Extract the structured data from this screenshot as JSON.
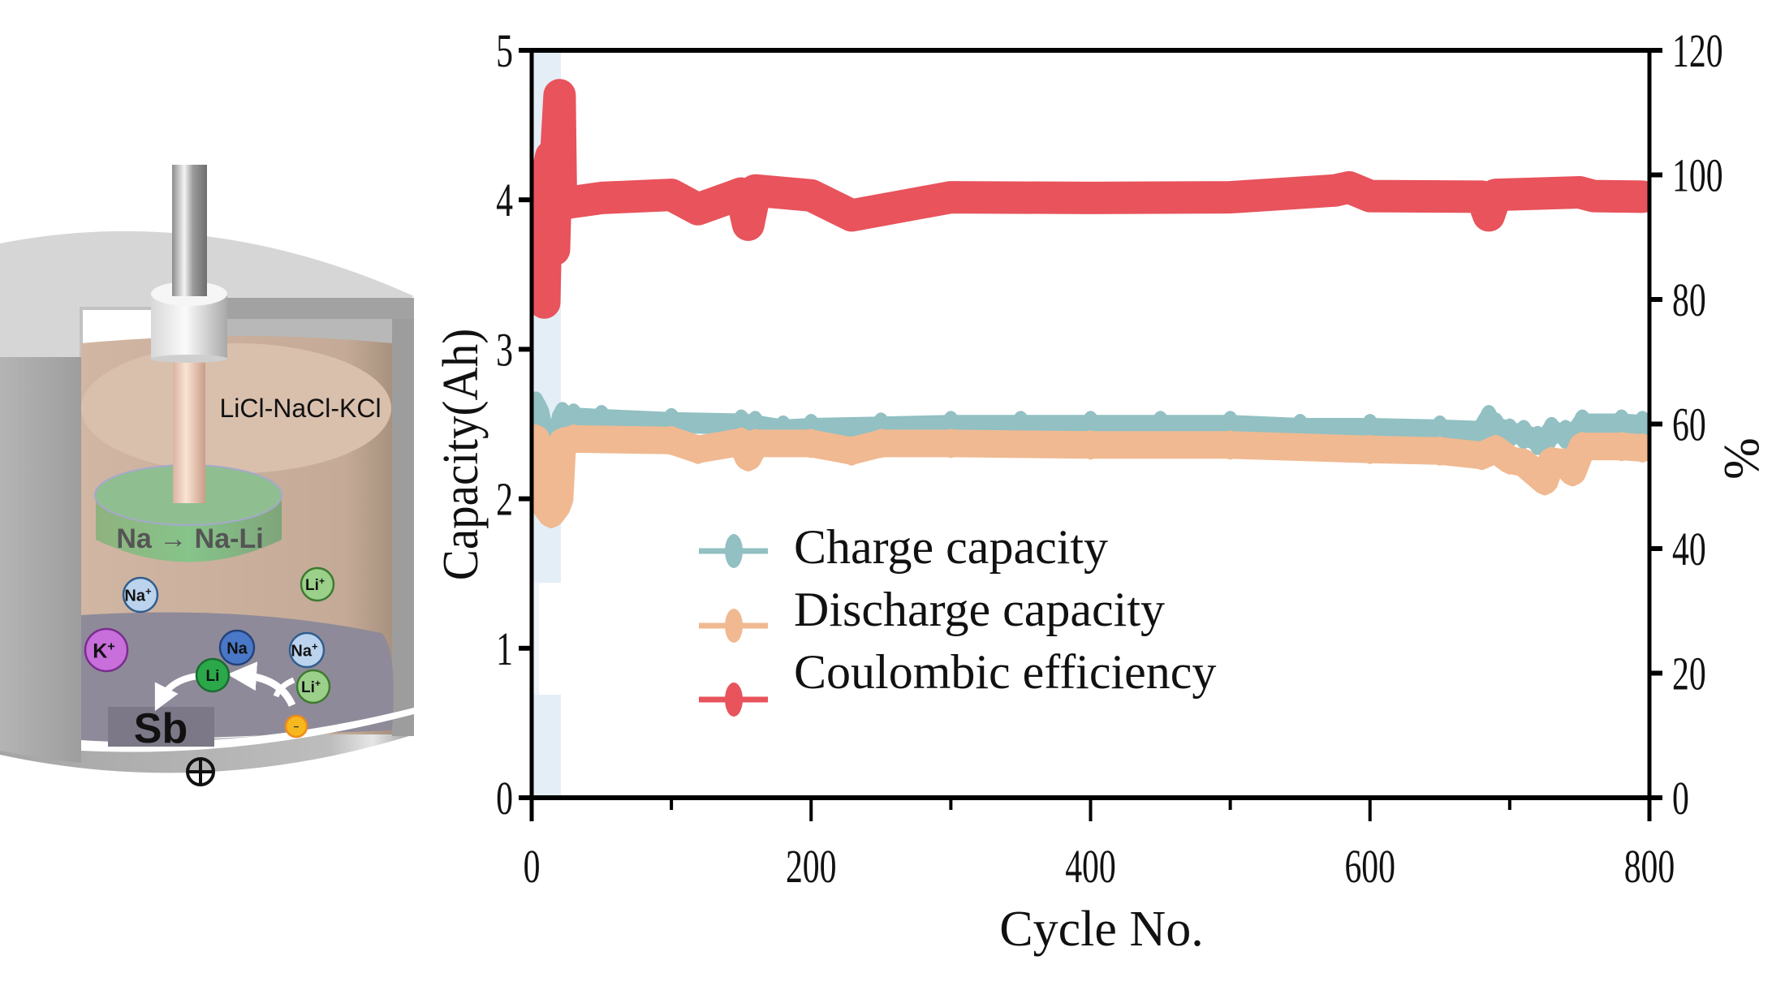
{
  "figure": {
    "diagram": {
      "electrolyte_label": "LiCl-NaCl-KCl",
      "top_electrode_label": "Na → Na-Li",
      "bottom_electrode_label": "Sb",
      "positive_terminal_symbol": "⊕",
      "ions": [
        {
          "label": "Na+",
          "symbol": "Na",
          "superscript": "+",
          "color": "#bcd3ee",
          "stroke": "#2f5e8e",
          "text_color": "#111111"
        },
        {
          "label": "Li+",
          "symbol": "Li",
          "superscript": "+",
          "color": "#9ad08a",
          "stroke": "#3d7a30",
          "text_color": "#111111"
        },
        {
          "label": "K+",
          "symbol": "K",
          "superscript": "+",
          "color": "#c86fdc",
          "stroke": "#7a2d8e",
          "text_color": "#111111"
        },
        {
          "label": "Na",
          "symbol": "Na",
          "superscript": "",
          "color": "#4a78c8",
          "stroke": "#23427a",
          "text_color": "#111111"
        },
        {
          "label": "Na+",
          "symbol": "Na",
          "superscript": "+",
          "color": "#bcd3ee",
          "stroke": "#2f5e8e",
          "text_color": "#111111"
        },
        {
          "label": "Li",
          "symbol": "Li",
          "superscript": "",
          "color": "#2aa84a",
          "stroke": "#1c6b31",
          "text_color": "#111111"
        },
        {
          "label": "Li+",
          "symbol": "Li",
          "superscript": "+",
          "color": "#9ad08a",
          "stroke": "#3d7a30",
          "text_color": "#111111"
        },
        {
          "label": "electron",
          "symbol": "−",
          "superscript": "",
          "color": "#f7b81e",
          "stroke": "#f08a1a",
          "text_color": "#333333"
        }
      ]
    }
  },
  "chart_data": {
    "type": "scatter",
    "title": "",
    "xlabel": "Cycle No.",
    "ylabel": "Capacity(Ah)",
    "y2label": "%",
    "xlim": [
      0,
      800
    ],
    "ylim": [
      0,
      5
    ],
    "y2lim": [
      0,
      120
    ],
    "x_ticks": [
      0,
      200,
      400,
      600,
      800
    ],
    "x_minor_ticks": [
      100,
      300,
      500,
      700
    ],
    "y_ticks": [
      0,
      1,
      2,
      3,
      4,
      5
    ],
    "y2_ticks": [
      0,
      20,
      40,
      60,
      80,
      100,
      120
    ],
    "grid": false,
    "legend_position": "center-left",
    "highlight_region": {
      "x": [
        0,
        20
      ],
      "color": "#e3eef7"
    },
    "series": [
      {
        "name": "Charge capacity",
        "axis": "left",
        "color": "#92c0c3",
        "x": [
          1,
          3,
          5,
          8,
          10,
          12,
          15,
          18,
          20,
          22,
          30,
          50,
          100,
          150,
          155,
          160,
          180,
          200,
          250,
          300,
          350,
          400,
          450,
          500,
          550,
          600,
          650,
          680,
          685,
          690,
          700,
          710,
          720,
          725,
          730,
          740,
          745,
          752,
          780,
          795
        ],
        "y": [
          2.55,
          2.62,
          2.58,
          2.45,
          2.2,
          2.1,
          2.05,
          2.0,
          2.45,
          2.55,
          2.54,
          2.53,
          2.51,
          2.5,
          2.47,
          2.49,
          2.46,
          2.47,
          2.48,
          2.49,
          2.49,
          2.49,
          2.49,
          2.49,
          2.47,
          2.47,
          2.46,
          2.45,
          2.53,
          2.48,
          2.44,
          2.43,
          2.39,
          2.37,
          2.45,
          2.43,
          2.41,
          2.5,
          2.5,
          2.49
        ]
      },
      {
        "name": "Discharge capacity",
        "axis": "left",
        "color": "#f0b991",
        "x": [
          1,
          3,
          5,
          8,
          10,
          14,
          18,
          20,
          22,
          30,
          100,
          119,
          150,
          155,
          160,
          200,
          229,
          250,
          300,
          400,
          500,
          600,
          650,
          680,
          690,
          700,
          710,
          725,
          730,
          740,
          745,
          752,
          780,
          795
        ],
        "y": [
          2.35,
          2.4,
          2.2,
          2.0,
          1.95,
          1.9,
          1.95,
          2.0,
          2.38,
          2.4,
          2.39,
          2.33,
          2.38,
          2.28,
          2.37,
          2.37,
          2.32,
          2.37,
          2.37,
          2.36,
          2.36,
          2.33,
          2.32,
          2.29,
          2.33,
          2.26,
          2.24,
          2.12,
          2.25,
          2.24,
          2.18,
          2.35,
          2.35,
          2.34
        ]
      },
      {
        "name": "Coulombic efficiency",
        "axis": "right",
        "color": "#e8535c",
        "x": [
          1,
          3,
          5,
          8,
          9,
          10,
          12,
          14,
          16,
          18,
          20,
          21,
          25,
          50,
          100,
          119,
          150,
          155,
          160,
          200,
          229,
          300,
          400,
          500,
          575,
          585,
          600,
          680,
          685,
          690,
          750,
          760,
          795
        ],
        "y": [
          95,
          98,
          99,
          100,
          79.5,
          90,
          101,
          103,
          88,
          105,
          112.8,
          95,
          95.5,
          96.3,
          96.8,
          94.5,
          97,
          92,
          97.5,
          96.7,
          93.5,
          96.4,
          96.3,
          96.4,
          97.5,
          98,
          96.6,
          96.5,
          93.5,
          96.8,
          97.2,
          96.6,
          96.5
        ]
      }
    ]
  }
}
